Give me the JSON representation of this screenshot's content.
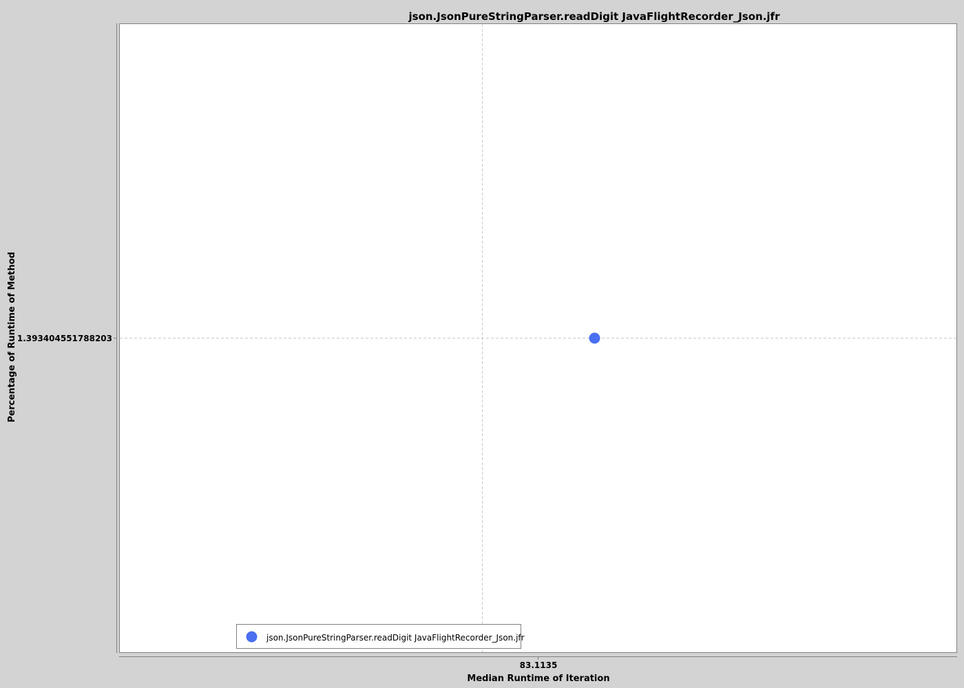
{
  "chart_data": {
    "type": "scatter",
    "title": "json.JsonPureStringParser.readDigit JavaFlightRecorder_Json.jfr",
    "xlabel": "Median Runtime of Iteration",
    "ylabel": "Percentage of Runtime of Method",
    "x_ticks": [
      "83.1135"
    ],
    "y_ticks": [
      "1.393404551788203"
    ],
    "grid": true,
    "legend_position": "bottom-left",
    "series": [
      {
        "name": "json.JsonPureStringParser.readDigit JavaFlightRecorder_Json.jfr",
        "color": "#4a6ff0",
        "points": [
          {
            "x": 83.1135,
            "y": 1.393404551788203
          }
        ]
      }
    ]
  },
  "colors": {
    "background": "#d3d3d3",
    "plot_background": "#ffffff",
    "gridline": "#c8c8c8",
    "axis": "#808080",
    "marker": "#4a6ff0"
  }
}
